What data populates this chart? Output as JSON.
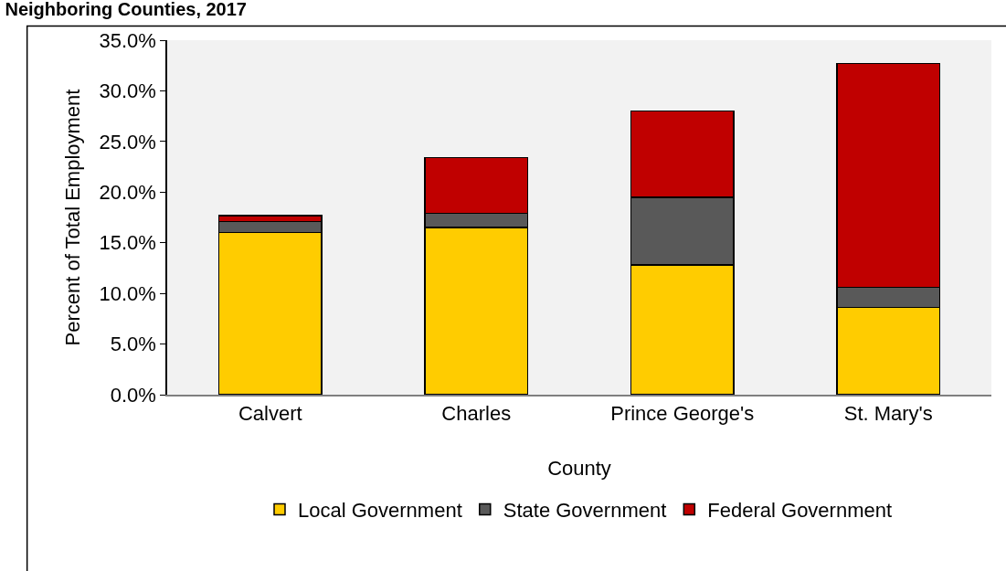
{
  "chart_data": {
    "type": "bar",
    "title": "Neighboring Counties, 2017",
    "xlabel": "County",
    "ylabel": "Percent of Total Employment",
    "categories": [
      "Calvert",
      "Charles",
      "Prince George's",
      "St. Mary's"
    ],
    "series": [
      {
        "name": "Local Government",
        "color": "#ffcc00",
        "values": [
          16.0,
          16.5,
          12.8,
          8.6
        ]
      },
      {
        "name": "State Government",
        "color": "#595959",
        "values": [
          1.1,
          1.4,
          6.7,
          2.0
        ]
      },
      {
        "name": "Federal Government",
        "color": "#c00000",
        "values": [
          0.6,
          5.5,
          8.5,
          22.1
        ]
      }
    ],
    "stacked": true,
    "ylim": [
      0,
      35
    ],
    "yticks": [
      {
        "value": 0,
        "label": "0.0%"
      },
      {
        "value": 5,
        "label": "5.0%"
      },
      {
        "value": 10,
        "label": "10.0%"
      },
      {
        "value": 15,
        "label": "15.0%"
      },
      {
        "value": 20,
        "label": "20.0%"
      },
      {
        "value": 25,
        "label": "25.0%"
      },
      {
        "value": 30,
        "label": "30.0%"
      },
      {
        "value": 35,
        "label": "35.0%"
      }
    ],
    "grid": false,
    "legend": "bottom"
  }
}
